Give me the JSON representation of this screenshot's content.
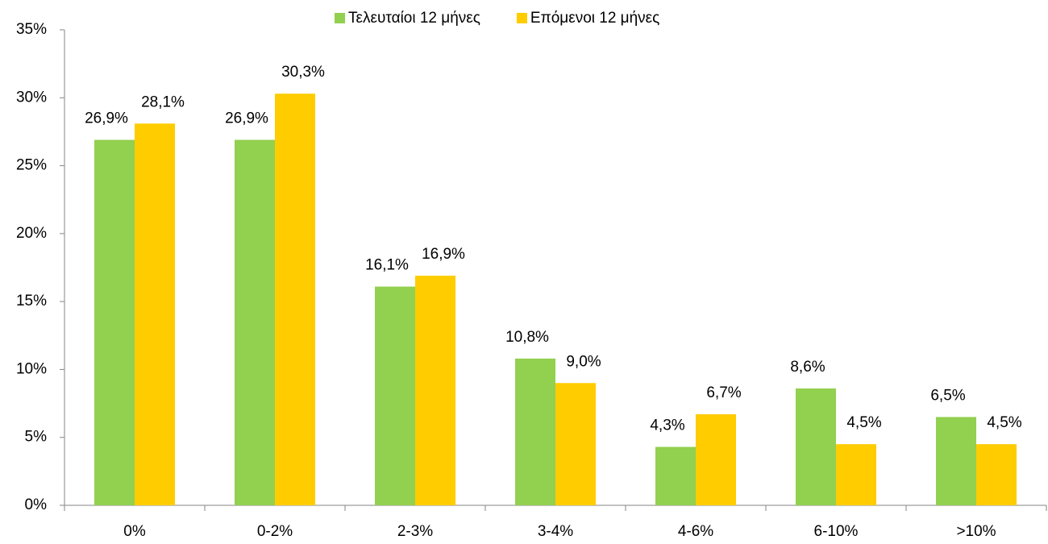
{
  "chart_data": {
    "type": "bar",
    "categories": [
      "0%",
      "0-2%",
      "2-3%",
      "3-4%",
      "4-6%",
      "6-10%",
      ">10%"
    ],
    "series": [
      {
        "name": "Τελευταίοι 12 μήνες",
        "color": "#92d050",
        "values": [
          26.9,
          26.9,
          16.1,
          10.8,
          4.3,
          8.6,
          6.5
        ],
        "value_labels": [
          "26,9%",
          "26,9%",
          "16,1%",
          "10,8%",
          "4,3%",
          "8,6%",
          "6,5%"
        ]
      },
      {
        "name": "Επόμενοι 12 μήνες",
        "color": "#ffcc00",
        "values": [
          28.1,
          30.3,
          16.9,
          9.0,
          6.7,
          4.5,
          4.5
        ],
        "value_labels": [
          "28,1%",
          "30,3%",
          "16,9%",
          "9,0%",
          "6,7%",
          "4,5%",
          "4,5%"
        ]
      }
    ],
    "ylim": [
      0,
      35
    ],
    "yticks": [
      {
        "value": 0,
        "label": "0%"
      },
      {
        "value": 5,
        "label": "5%"
      },
      {
        "value": 10,
        "label": "10%"
      },
      {
        "value": 15,
        "label": "15%"
      },
      {
        "value": 20,
        "label": "20%"
      },
      {
        "value": 25,
        "label": "25%"
      },
      {
        "value": 30,
        "label": "30%"
      },
      {
        "value": 35,
        "label": "35%"
      }
    ],
    "grid": false,
    "legend": "top"
  }
}
